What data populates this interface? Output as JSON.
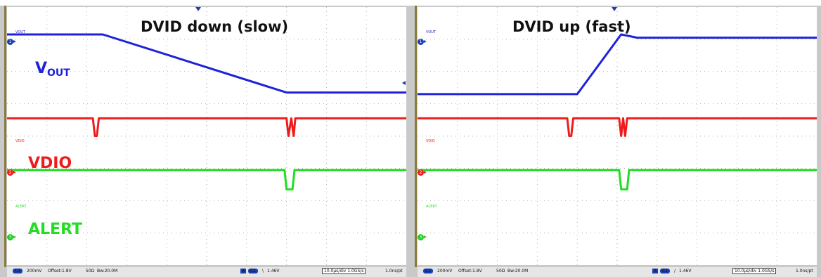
{
  "colors": {
    "vout": "#1f22d8",
    "vdio": "#ee1c1c",
    "alert": "#22dd22",
    "grid": "#9a9a9a",
    "accent": "#1a3fb0"
  },
  "panels": [
    {
      "title": "DVID down (slow)",
      "ch1_tag": "VOUT",
      "ch2_tag": "VDIO",
      "ch3_tag": "ALERT",
      "marker_1": "1",
      "marker_2": "2",
      "marker_3": "3",
      "vout_label": "V",
      "vout_sub": "OUT",
      "vdio_label": "VDIO",
      "alert_label": "ALERT",
      "status": {
        "ch": "C1",
        "scale": "200mV",
        "offset": "Offset:1.8V",
        "impedance": "50Ω",
        "bw": "Bw:20.0M",
        "trig_src": "A",
        "trig_ch": "C1",
        "trig_slope": "\\",
        "trig_level": "1.46V",
        "timebase": "10.0µs/div  1.0GS/s",
        "sample": "1.0ns/pt"
      }
    },
    {
      "title": "DVID up (fast)",
      "ch1_tag": "VOUT",
      "ch2_tag": "VDIO",
      "ch3_tag": "ALERT",
      "marker_1": "1",
      "marker_2": "2",
      "marker_3": "3",
      "status": {
        "ch": "C1",
        "scale": "200mV",
        "offset": "Offset:1.8V",
        "impedance": "50Ω",
        "bw": "Bw:20.0M",
        "trig_src": "A",
        "trig_ch": "C1",
        "trig_slope": "/",
        "trig_level": "1.46V",
        "timebase": "10.0µs/div  1.0GS/s",
        "sample": "1.0ns/pt"
      }
    }
  ],
  "chart_data": [
    {
      "type": "line",
      "title": "DVID down (slow)",
      "xlim": [
        0,
        10
      ],
      "ylim": [
        0,
        8
      ],
      "grid": true,
      "series": [
        {
          "name": "VOUT",
          "x": [
            0,
            2.4,
            7.0,
            10
          ],
          "y": [
            7.15,
            7.15,
            5.35,
            5.35
          ]
        },
        {
          "name": "VDIO",
          "x": [
            0,
            2.15,
            2.2,
            2.25,
            2.3,
            7.0,
            7.05,
            7.12,
            7.18,
            7.22,
            10
          ],
          "y": [
            4.55,
            4.55,
            4.0,
            4.0,
            4.55,
            4.55,
            4.0,
            4.55,
            4.0,
            4.55,
            4.55
          ]
        },
        {
          "name": "ALERT",
          "x": [
            0,
            6.95,
            7.0,
            7.15,
            7.2,
            10
          ],
          "y": [
            2.95,
            2.95,
            2.35,
            2.35,
            2.95,
            2.95
          ]
        }
      ]
    },
    {
      "type": "line",
      "title": "DVID up (fast)",
      "xlim": [
        0,
        10
      ],
      "ylim": [
        0,
        8
      ],
      "grid": true,
      "series": [
        {
          "name": "VOUT",
          "x": [
            0,
            4.0,
            5.1,
            5.5,
            10
          ],
          "y": [
            5.3,
            5.3,
            7.15,
            7.05,
            7.05
          ]
        },
        {
          "name": "VDIO",
          "x": [
            0,
            3.75,
            3.8,
            3.85,
            3.9,
            5.05,
            5.1,
            5.15,
            5.2,
            5.25,
            10
          ],
          "y": [
            4.55,
            4.55,
            4.0,
            4.0,
            4.55,
            4.55,
            4.0,
            4.55,
            4.0,
            4.55,
            4.55
          ]
        },
        {
          "name": "ALERT",
          "x": [
            0,
            5.05,
            5.1,
            5.25,
            5.3,
            10
          ],
          "y": [
            2.95,
            2.95,
            2.35,
            2.35,
            2.95,
            2.95
          ]
        }
      ]
    }
  ]
}
